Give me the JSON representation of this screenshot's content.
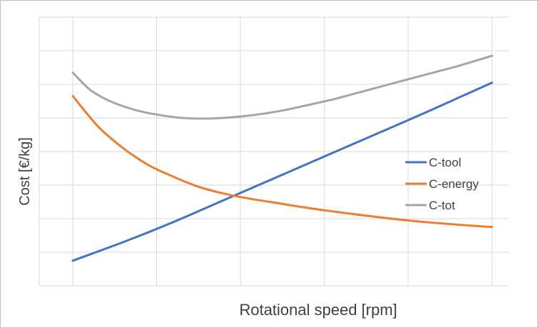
{
  "chart_data": {
    "type": "line",
    "title": "",
    "xlabel": "Rotational speed [rpm]",
    "ylabel": "Cost [€/kg]",
    "x": [
      1,
      2,
      3,
      4,
      5,
      6
    ],
    "xlim": [
      0.6,
      6.2
    ],
    "ylim": [
      0,
      8
    ],
    "grid": true,
    "legend_position": "right",
    "series": [
      {
        "name": "C-tool",
        "color": "#4472C4",
        "x": [
          1.0,
          1.6,
          2.2,
          2.8,
          3.4,
          4.0,
          4.6,
          5.2,
          5.6,
          6.0
        ],
        "y": [
          0.75,
          1.3,
          1.9,
          2.55,
          3.2,
          3.85,
          4.5,
          5.15,
          5.6,
          6.05
        ]
      },
      {
        "name": "C-energy",
        "color": "#ED7D31",
        "x": [
          1.0,
          1.3,
          1.6,
          1.9,
          2.2,
          2.5,
          2.8,
          3.1,
          3.4,
          3.7,
          4.0,
          4.4,
          4.8,
          5.2,
          5.6,
          6.0
        ],
        "y": [
          5.65,
          4.75,
          4.1,
          3.6,
          3.25,
          2.95,
          2.75,
          2.6,
          2.48,
          2.36,
          2.25,
          2.12,
          2.0,
          1.9,
          1.82,
          1.75
        ]
      },
      {
        "name": "C-tot",
        "color": "#A5A5A5",
        "x": [
          1.0,
          1.2,
          1.4,
          1.6,
          1.8,
          2.0,
          2.3,
          2.6,
          2.9,
          3.2,
          3.5,
          3.8,
          4.1,
          4.4,
          4.7,
          5.0,
          5.3,
          5.6,
          6.0
        ],
        "y": [
          6.35,
          5.85,
          5.55,
          5.35,
          5.2,
          5.1,
          5.0,
          4.98,
          5.02,
          5.1,
          5.22,
          5.38,
          5.55,
          5.75,
          5.95,
          6.15,
          6.35,
          6.55,
          6.85
        ]
      }
    ]
  }
}
